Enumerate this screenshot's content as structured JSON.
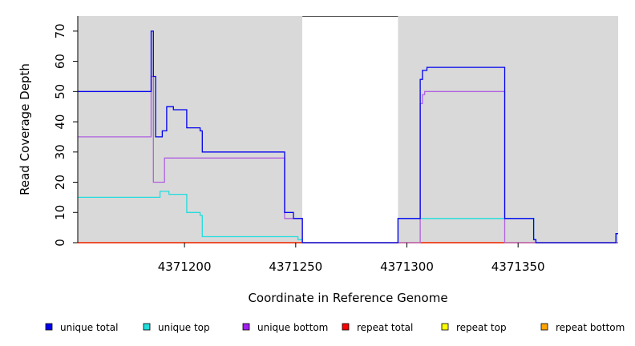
{
  "chart_data": {
    "type": "line",
    "xlabel": "Coordinate in Reference Genome",
    "ylabel": "Read Coverage Depth",
    "xlim": [
      4371152,
      4371395
    ],
    "ylim": [
      0,
      75
    ],
    "x_ticks": [
      4371200,
      4371250,
      4371300,
      4371350
    ],
    "x_tick_labels": [
      "4371200",
      "4371250",
      "4371300",
      "4371350"
    ],
    "y_ticks": [
      0,
      10,
      20,
      30,
      40,
      50,
      60,
      70
    ],
    "y_tick_labels": [
      "0",
      "10",
      "20",
      "30",
      "40",
      "50",
      "60",
      "70"
    ],
    "gap_region": [
      4371253,
      4371296
    ],
    "legend_position": "bottom",
    "series": [
      {
        "name": "unique total",
        "color": "#0000ee",
        "x": [
          4371152,
          4371185,
          4371186,
          4371187,
          4371190,
          4371192,
          4371195,
          4371201,
          4371207,
          4371208,
          4371245,
          4371249,
          4371253,
          4371296,
          4371306,
          4371307,
          4371309,
          4371344,
          4371357,
          4371358,
          4371394,
          4371395
        ],
        "y": [
          50,
          70,
          55,
          35,
          37,
          45,
          44,
          38,
          37,
          30,
          10,
          8,
          0,
          8,
          54,
          57,
          58,
          8,
          1,
          0,
          3,
          3
        ]
      },
      {
        "name": "unique top",
        "color": "#22dddd",
        "x": [
          4371152,
          4371189,
          4371193,
          4371201,
          4371207,
          4371208,
          4371245,
          4371251,
          4371253,
          4371296,
          4371357,
          4371358,
          4371394,
          4371395
        ],
        "y": [
          15,
          17,
          16,
          10,
          9,
          2,
          2,
          1,
          0,
          8,
          1,
          0,
          3,
          3
        ]
      },
      {
        "name": "unique bottom",
        "color": "#b060e0",
        "x": [
          4371152,
          4371185,
          4371186,
          4371191,
          4371245,
          4371249,
          4371253,
          4371305,
          4371306,
          4371307,
          4371308,
          4371344,
          4371345,
          4371395
        ],
        "y": [
          35,
          55,
          20,
          28,
          8,
          8,
          0,
          0,
          46,
          49,
          50,
          0,
          0,
          0
        ]
      },
      {
        "name": "repeat total",
        "color": "#ee0000",
        "x": [
          4371152,
          4371395
        ],
        "y": [
          0,
          0
        ]
      },
      {
        "name": "repeat top",
        "color": "#eeee00",
        "x": [
          4371152,
          4371395
        ],
        "y": [
          0,
          0
        ]
      },
      {
        "name": "repeat bottom",
        "color": "#ee9900",
        "x": [
          4371152,
          4371395
        ],
        "y": [
          0,
          0
        ]
      }
    ],
    "legend": [
      {
        "label": "unique total",
        "color": "#0000ee"
      },
      {
        "label": "unique top",
        "color": "#22dddd"
      },
      {
        "label": "unique bottom",
        "color": "#a020f0"
      },
      {
        "label": "repeat total",
        "color": "#ff0000"
      },
      {
        "label": "repeat top",
        "color": "#ffff00"
      },
      {
        "label": "repeat bottom",
        "color": "#ffa500"
      }
    ],
    "background_color": "#d9d9d9"
  }
}
